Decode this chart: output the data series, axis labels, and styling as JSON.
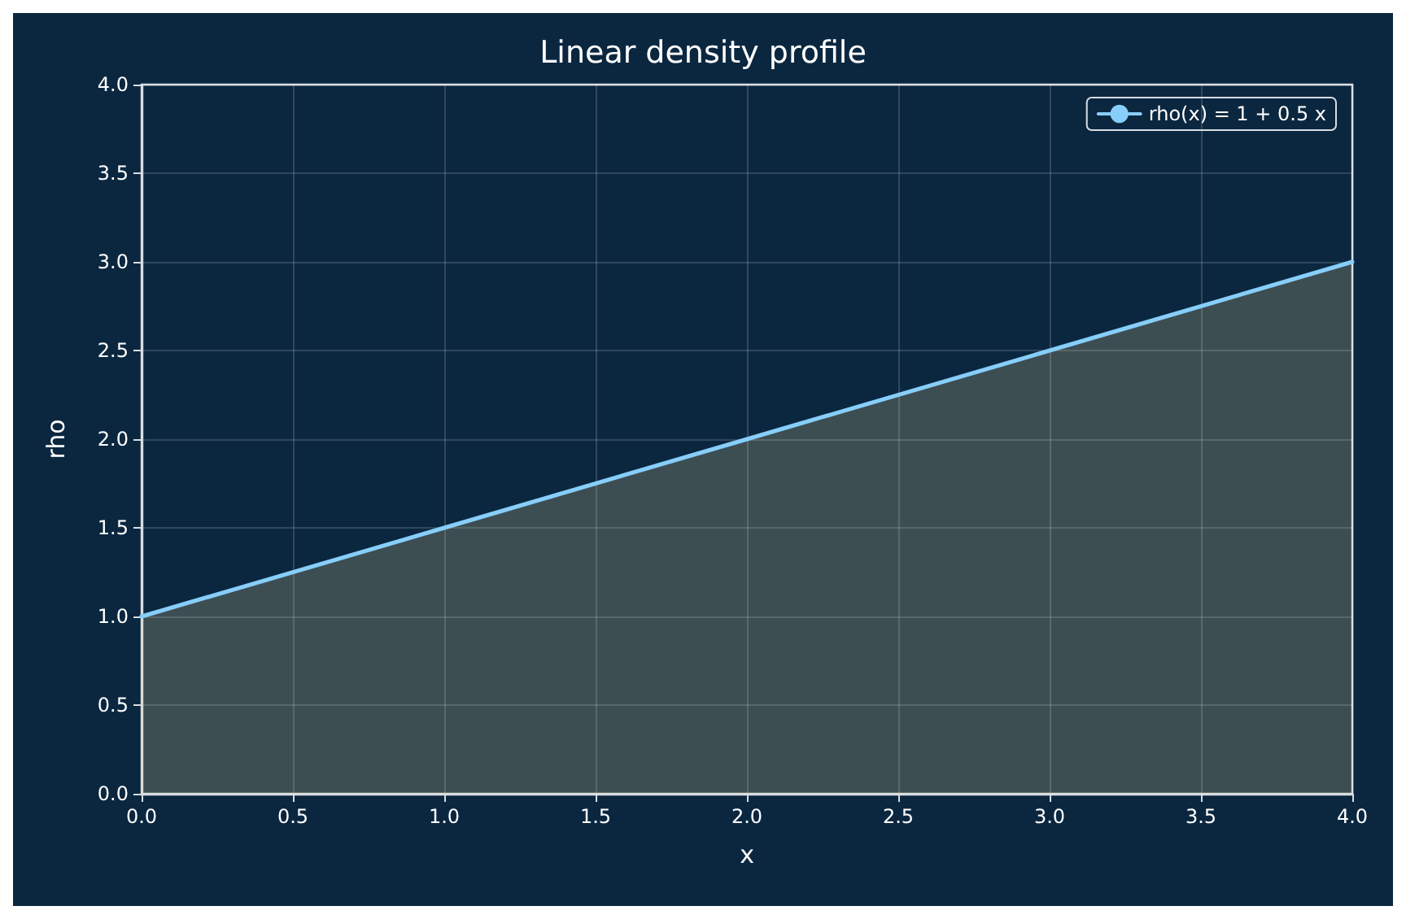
{
  "chart_data": {
    "type": "line",
    "title": "Linear density profile",
    "xlabel": "x",
    "ylabel": "rho",
    "x": [
      0,
      1,
      2,
      3,
      4
    ],
    "series": [
      {
        "type": "area",
        "color": "#f0dc96",
        "values": [
          1,
          1.5,
          2,
          2.5,
          3
        ]
      },
      {
        "name": "rho(x) = 1 + 0.5 x",
        "color": "#87cefa",
        "values": [
          1,
          1.5,
          2,
          2.5,
          3
        ]
      }
    ],
    "xlim": [
      0,
      4
    ],
    "xticks": [
      {
        "value": 0,
        "label": "0.0"
      },
      0.5,
      {
        "value": 1,
        "label": "1.0"
      },
      1.5,
      {
        "value": 2,
        "label": "2.0"
      },
      2.5,
      {
        "value": 3,
        "label": "3.0"
      },
      3.5,
      {
        "value": 4,
        "label": "4.0"
      }
    ],
    "ylim": [
      0,
      4
    ],
    "yticks": [
      {
        "value": 0,
        "label": "0.0"
      },
      0.5,
      {
        "value": 1,
        "label": "1.0"
      },
      1.5,
      {
        "value": 2,
        "label": "2.0"
      },
      2.5,
      {
        "value": 3,
        "label": "3.0"
      },
      3.5,
      {
        "value": 4,
        "label": "4.0"
      }
    ],
    "grid": true,
    "legend": "top right",
    "marker": "none",
    "line_style": "solid"
  }
}
